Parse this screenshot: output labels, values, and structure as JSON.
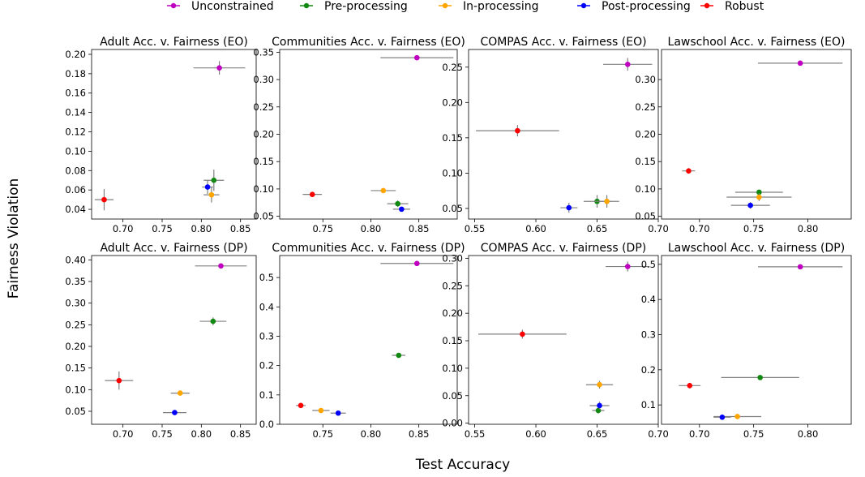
{
  "legend": [
    {
      "name": "Unconstrained",
      "color": "#c000c0"
    },
    {
      "name": "Pre-processing",
      "color": "#118811"
    },
    {
      "name": "In-processing",
      "color": "#ffa500"
    },
    {
      "name": "Post-processing",
      "color": "#0000ff"
    },
    {
      "name": "Robust",
      "color": "#ff0000"
    }
  ],
  "xlabel": "Test Accuracy",
  "ylabel": "Fairness Violation",
  "error_bar_color": "#808080",
  "chart_data": [
    {
      "type": "scatter",
      "title": "Adult Acc. v. Fairness (EO)",
      "xlim": [
        0.66,
        0.87
      ],
      "ylim": [
        0.03,
        0.205
      ],
      "xticks": [
        "0.70",
        "0.75",
        "0.80",
        "0.85"
      ],
      "xtick_values": [
        0.7,
        0.75,
        0.8,
        0.85
      ],
      "yticks": [
        "0.04",
        "0.06",
        "0.08",
        "0.10",
        "0.12",
        "0.14",
        "0.16",
        "0.18",
        "0.20"
      ],
      "ytick_values": [
        0.04,
        0.06,
        0.08,
        0.1,
        0.12,
        0.14,
        0.16,
        0.18,
        0.2
      ],
      "points": [
        {
          "series": "Unconstrained",
          "x": 0.823,
          "y": 0.186,
          "xerr": 0.033,
          "yerr": 0.007
        },
        {
          "series": "Pre-processing",
          "x": 0.816,
          "y": 0.07,
          "xerr": 0.013,
          "yerr": 0.011
        },
        {
          "series": "In-processing",
          "x": 0.813,
          "y": 0.055,
          "xerr": 0.01,
          "yerr": 0.008
        },
        {
          "series": "Post-processing",
          "x": 0.808,
          "y": 0.063,
          "xerr": 0.007,
          "yerr": 0.007
        },
        {
          "series": "Robust",
          "x": 0.676,
          "y": 0.05,
          "xerr": 0.012,
          "yerr": 0.011
        }
      ]
    },
    {
      "type": "scatter",
      "title": "Communities Acc. v. Fairness (EO)",
      "xlim": [
        0.705,
        0.89
      ],
      "ylim": [
        0.045,
        0.355
      ],
      "xticks": [
        "0.75",
        "0.80",
        "0.85"
      ],
      "xtick_values": [
        0.75,
        0.8,
        0.85
      ],
      "yticks": [
        "0.05",
        "0.10",
        "0.15",
        "0.20",
        "0.25",
        "0.30",
        "0.35"
      ],
      "ytick_values": [
        0.05,
        0.1,
        0.15,
        0.2,
        0.25,
        0.3,
        0.35
      ],
      "points": [
        {
          "series": "Unconstrained",
          "x": 0.848,
          "y": 0.34,
          "xerr": 0.038,
          "yerr": 0.004
        },
        {
          "series": "Pre-processing",
          "x": 0.828,
          "y": 0.073,
          "xerr": 0.011,
          "yerr": 0.006
        },
        {
          "series": "In-processing",
          "x": 0.813,
          "y": 0.097,
          "xerr": 0.013,
          "yerr": 0.003
        },
        {
          "series": "Post-processing",
          "x": 0.832,
          "y": 0.063,
          "xerr": 0.009,
          "yerr": 0.004
        },
        {
          "series": "Robust",
          "x": 0.739,
          "y": 0.09,
          "xerr": 0.01,
          "yerr": 0.004
        }
      ]
    },
    {
      "type": "scatter",
      "title": "COMPAS Acc. v. Fairness (EO)",
      "xlim": [
        0.545,
        0.7
      ],
      "ylim": [
        0.035,
        0.275
      ],
      "xticks": [
        "0.55",
        "0.60",
        "0.65",
        "0.70"
      ],
      "xtick_values": [
        0.55,
        0.6,
        0.65,
        0.7
      ],
      "yticks": [
        "0.05",
        "0.10",
        "0.15",
        "0.20",
        "0.25"
      ],
      "ytick_values": [
        0.05,
        0.1,
        0.15,
        0.2,
        0.25
      ],
      "points": [
        {
          "series": "Unconstrained",
          "x": 0.675,
          "y": 0.254,
          "xerr": 0.02,
          "yerr": 0.009
        },
        {
          "series": "Pre-processing",
          "x": 0.65,
          "y": 0.06,
          "xerr": 0.011,
          "yerr": 0.009
        },
        {
          "series": "In-processing",
          "x": 0.658,
          "y": 0.06,
          "xerr": 0.01,
          "yerr": 0.009
        },
        {
          "series": "Post-processing",
          "x": 0.627,
          "y": 0.051,
          "xerr": 0.007,
          "yerr": 0.007
        },
        {
          "series": "Robust",
          "x": 0.585,
          "y": 0.16,
          "xerr": 0.034,
          "yerr": 0.008
        }
      ]
    },
    {
      "type": "scatter",
      "title": "Lawschool Acc. v. Fairness (EO)",
      "xlim": [
        0.665,
        0.84
      ],
      "ylim": [
        0.045,
        0.355
      ],
      "xticks": [
        "0.70",
        "0.75",
        "0.80"
      ],
      "xtick_values": [
        0.7,
        0.75,
        0.8
      ],
      "yticks": [
        "0.05",
        "0.10",
        "0.15",
        "0.20",
        "0.25",
        "0.30"
      ],
      "ytick_values": [
        0.05,
        0.1,
        0.15,
        0.2,
        0.25,
        0.3
      ],
      "points": [
        {
          "series": "Unconstrained",
          "x": 0.793,
          "y": 0.33,
          "xerr": 0.039,
          "yerr": 0.002
        },
        {
          "series": "Pre-processing",
          "x": 0.755,
          "y": 0.094,
          "xerr": 0.022,
          "yerr": 0.004
        },
        {
          "series": "In-processing",
          "x": 0.755,
          "y": 0.085,
          "xerr": 0.03,
          "yerr": 0.007
        },
        {
          "series": "Post-processing",
          "x": 0.747,
          "y": 0.07,
          "xerr": 0.018,
          "yerr": 0.006
        },
        {
          "series": "Robust",
          "x": 0.69,
          "y": 0.133,
          "xerr": 0.006,
          "yerr": 0.005
        }
      ]
    },
    {
      "type": "scatter",
      "title": "Adult Acc. v. Fairness (DP)",
      "xlim": [
        0.66,
        0.87
      ],
      "ylim": [
        0.02,
        0.41
      ],
      "xticks": [
        "0.70",
        "0.75",
        "0.80",
        "0.85"
      ],
      "xtick_values": [
        0.7,
        0.75,
        0.8,
        0.85
      ],
      "yticks": [
        "0.05",
        "0.10",
        "0.15",
        "0.20",
        "0.25",
        "0.30",
        "0.35",
        "0.40"
      ],
      "ytick_values": [
        0.05,
        0.1,
        0.15,
        0.2,
        0.25,
        0.3,
        0.35,
        0.4
      ],
      "points": [
        {
          "series": "Unconstrained",
          "x": 0.825,
          "y": 0.386,
          "xerr": 0.033,
          "yerr": 0.005
        },
        {
          "series": "Pre-processing",
          "x": 0.815,
          "y": 0.258,
          "xerr": 0.017,
          "yerr": 0.009
        },
        {
          "series": "In-processing",
          "x": 0.773,
          "y": 0.092,
          "xerr": 0.012,
          "yerr": 0.005
        },
        {
          "series": "Post-processing",
          "x": 0.766,
          "y": 0.047,
          "xerr": 0.015,
          "yerr": 0.004
        },
        {
          "series": "Robust",
          "x": 0.695,
          "y": 0.121,
          "xerr": 0.018,
          "yerr": 0.021
        }
      ]
    },
    {
      "type": "scatter",
      "title": "Communities Acc. v. Fairness (DP)",
      "xlim": [
        0.705,
        0.89
      ],
      "ylim": [
        0.0,
        0.575
      ],
      "xticks": [
        "0.75",
        "0.80",
        "0.85"
      ],
      "xtick_values": [
        0.75,
        0.8,
        0.85
      ],
      "yticks": [
        "0.0",
        "0.1",
        "0.2",
        "0.3",
        "0.4",
        "0.5"
      ],
      "ytick_values": [
        0.0,
        0.1,
        0.2,
        0.3,
        0.4,
        0.5
      ],
      "points": [
        {
          "series": "Unconstrained",
          "x": 0.848,
          "y": 0.548,
          "xerr": 0.038,
          "yerr": 0.006
        },
        {
          "series": "Pre-processing",
          "x": 0.829,
          "y": 0.235,
          "xerr": 0.007,
          "yerr": 0.004
        },
        {
          "series": "In-processing",
          "x": 0.748,
          "y": 0.047,
          "xerr": 0.009,
          "yerr": 0.005
        },
        {
          "series": "Post-processing",
          "x": 0.766,
          "y": 0.038,
          "xerr": 0.008,
          "yerr": 0.003
        },
        {
          "series": "Robust",
          "x": 0.727,
          "y": 0.064,
          "xerr": 0.005,
          "yerr": 0.004
        }
      ]
    },
    {
      "type": "scatter",
      "title": "COMPAS Acc. v. Fairness (DP)",
      "xlim": [
        0.545,
        0.7
      ],
      "ylim": [
        -0.002,
        0.305
      ],
      "xticks": [
        "0.55",
        "0.60",
        "0.65",
        "0.70"
      ],
      "xtick_values": [
        0.55,
        0.6,
        0.65,
        0.7
      ],
      "yticks": [
        "0.00",
        "0.05",
        "0.10",
        "0.15",
        "0.20",
        "0.25",
        "0.30"
      ],
      "ytick_values": [
        0.0,
        0.05,
        0.1,
        0.15,
        0.2,
        0.25,
        0.3
      ],
      "points": [
        {
          "series": "Unconstrained",
          "x": 0.675,
          "y": 0.285,
          "xerr": 0.018,
          "yerr": 0.009
        },
        {
          "series": "Pre-processing",
          "x": 0.651,
          "y": 0.023,
          "xerr": 0.005,
          "yerr": 0.005
        },
        {
          "series": "In-processing",
          "x": 0.652,
          "y": 0.07,
          "xerr": 0.011,
          "yerr": 0.007
        },
        {
          "series": "Post-processing",
          "x": 0.652,
          "y": 0.032,
          "xerr": 0.008,
          "yerr": 0.007
        },
        {
          "series": "Robust",
          "x": 0.589,
          "y": 0.162,
          "xerr": 0.036,
          "yerr": 0.008
        }
      ]
    },
    {
      "type": "scatter",
      "title": "Lawschool Acc. v. Fairness (DP)",
      "xlim": [
        0.665,
        0.84
      ],
      "ylim": [
        0.045,
        0.525
      ],
      "xticks": [
        "0.70",
        "0.75",
        "0.80"
      ],
      "xtick_values": [
        0.7,
        0.75,
        0.8
      ],
      "yticks": [
        "0.1",
        "0.2",
        "0.3",
        "0.4",
        "0.5"
      ],
      "ytick_values": [
        0.1,
        0.2,
        0.3,
        0.4,
        0.5
      ],
      "points": [
        {
          "series": "Unconstrained",
          "x": 0.793,
          "y": 0.493,
          "xerr": 0.039,
          "yerr": 0.005
        },
        {
          "series": "Pre-processing",
          "x": 0.756,
          "y": 0.178,
          "xerr": 0.036,
          "yerr": 0.004
        },
        {
          "series": "In-processing",
          "x": 0.735,
          "y": 0.067,
          "xerr": 0.022,
          "yerr": 0.003
        },
        {
          "series": "Post-processing",
          "x": 0.721,
          "y": 0.065,
          "xerr": 0.008,
          "yerr": 0.003
        },
        {
          "series": "Robust",
          "x": 0.691,
          "y": 0.155,
          "xerr": 0.01,
          "yerr": 0.008
        }
      ]
    }
  ]
}
